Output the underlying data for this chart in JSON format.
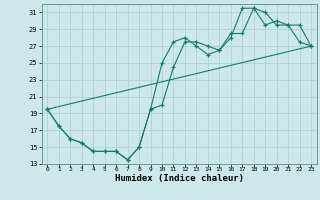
{
  "xlabel": "Humidex (Indice chaleur)",
  "background_color": "#cce8e8",
  "grid_color": "#aacece",
  "line_color": "#1a7a6e",
  "xlim": [
    -0.5,
    23.5
  ],
  "ylim": [
    13,
    32
  ],
  "yticks": [
    13,
    15,
    17,
    19,
    21,
    23,
    25,
    27,
    29,
    31
  ],
  "xticks": [
    0,
    1,
    2,
    3,
    4,
    5,
    6,
    7,
    8,
    9,
    10,
    11,
    12,
    13,
    14,
    15,
    16,
    17,
    18,
    19,
    20,
    21,
    22,
    23
  ],
  "series1_x": [
    0,
    1,
    2,
    3,
    4,
    5,
    6,
    7,
    8,
    9,
    10,
    11,
    12,
    13,
    14,
    15,
    16,
    17,
    18,
    19,
    20,
    21,
    22,
    23
  ],
  "series1_y": [
    19.5,
    17.5,
    16.0,
    15.5,
    14.5,
    14.5,
    14.5,
    13.5,
    15.0,
    19.5,
    20.0,
    24.5,
    27.5,
    27.5,
    27.0,
    26.5,
    28.5,
    28.5,
    31.5,
    31.0,
    29.5,
    29.5,
    29.5,
    27.0
  ],
  "series2_x": [
    0,
    1,
    2,
    3,
    4,
    5,
    6,
    7,
    8,
    9,
    10,
    11,
    12,
    13,
    14,
    15,
    16,
    17,
    18,
    19,
    20,
    21,
    22,
    23
  ],
  "series2_y": [
    19.5,
    17.5,
    16.0,
    15.5,
    14.5,
    14.5,
    14.5,
    13.5,
    15.0,
    19.5,
    25.0,
    27.5,
    28.0,
    27.0,
    26.0,
    26.5,
    28.0,
    31.5,
    31.5,
    29.5,
    30.0,
    29.5,
    27.5,
    27.0
  ],
  "series3_x": [
    0,
    23
  ],
  "series3_y": [
    19.5,
    27.0
  ]
}
